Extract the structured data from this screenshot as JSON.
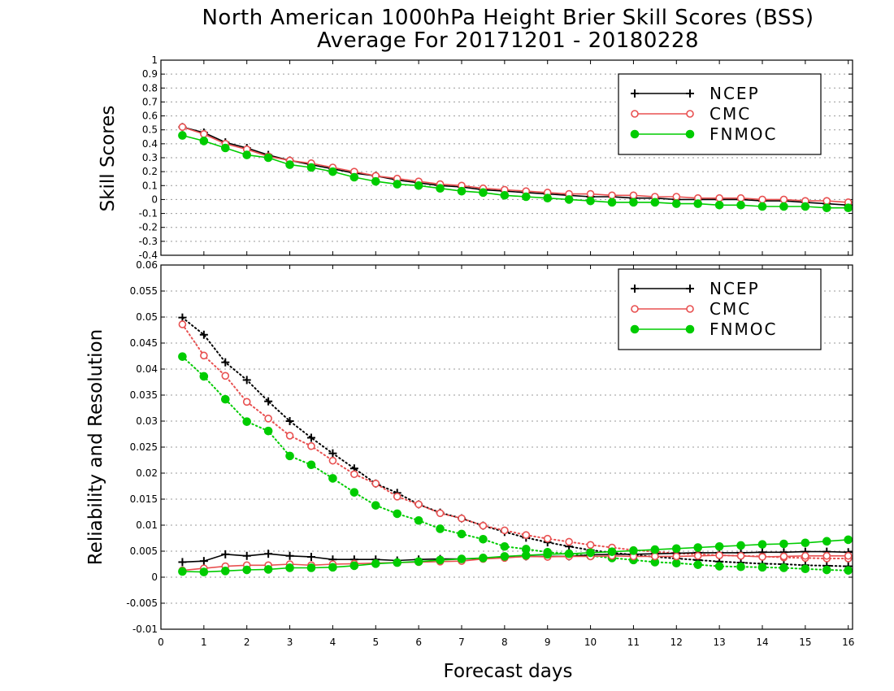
{
  "title_line1": "North American 1000hPa Height Brier Skill Scores (BSS)",
  "title_line2": "Average For 20171201 - 20180228",
  "xlabel": "Forecast days",
  "chart_data": [
    {
      "type": "line",
      "ylabel": "Skill Scores",
      "xlim": [
        0,
        16.1
      ],
      "ylim": [
        -0.4,
        1
      ],
      "yticks": [
        -0.4,
        -0.3,
        -0.2,
        -0.1,
        0,
        0.1,
        0.2,
        0.3,
        0.4,
        0.5,
        0.6,
        0.7,
        0.8,
        0.9,
        1
      ],
      "ytick_labels": [
        "-0.4",
        "-0.3",
        "-0.2",
        "-0.1",
        "0",
        "0.1",
        "0.2",
        "0.3",
        "0.4",
        "0.5",
        "0.6",
        "0.7",
        "0.8",
        "0.9",
        "1"
      ],
      "grid": true,
      "legend": "top-right",
      "x": [
        0.5,
        1,
        1.5,
        2,
        2.5,
        3,
        3.5,
        4,
        4.5,
        5,
        5.5,
        6,
        6.5,
        7,
        7.5,
        8,
        8.5,
        9,
        9.5,
        10,
        10.5,
        11,
        11.5,
        12,
        12.5,
        13,
        13.5,
        14,
        14.5,
        15,
        15.5,
        16
      ],
      "series": [
        {
          "name": "NCEP",
          "color": "#000000",
          "marker": "plus",
          "linestyle": "solid",
          "values": [
            0.52,
            0.48,
            0.41,
            0.37,
            0.32,
            0.28,
            0.25,
            0.22,
            0.19,
            0.17,
            0.14,
            0.12,
            0.1,
            0.09,
            0.07,
            0.06,
            0.05,
            0.04,
            0.03,
            0.02,
            0.02,
            0.01,
            0.01,
            0.0,
            0.0,
            0.0,
            0.0,
            -0.01,
            -0.01,
            -0.02,
            -0.03,
            -0.04
          ]
        },
        {
          "name": "CMC",
          "color": "#e85050",
          "marker": "open-circle",
          "linestyle": "solid",
          "values": [
            0.52,
            0.47,
            0.4,
            0.36,
            0.31,
            0.28,
            0.26,
            0.23,
            0.2,
            0.17,
            0.15,
            0.13,
            0.11,
            0.1,
            0.08,
            0.07,
            0.06,
            0.05,
            0.04,
            0.04,
            0.03,
            0.03,
            0.02,
            0.02,
            0.01,
            0.01,
            0.01,
            0.0,
            0.0,
            -0.01,
            -0.01,
            -0.02
          ]
        },
        {
          "name": "FNMOC",
          "color": "#00cc00",
          "marker": "filled-circle",
          "linestyle": "solid",
          "values": [
            0.46,
            0.42,
            0.37,
            0.32,
            0.3,
            0.25,
            0.23,
            0.2,
            0.16,
            0.13,
            0.11,
            0.1,
            0.08,
            0.06,
            0.05,
            0.03,
            0.02,
            0.01,
            0.0,
            -0.01,
            -0.02,
            -0.02,
            -0.02,
            -0.03,
            -0.03,
            -0.04,
            -0.04,
            -0.05,
            -0.05,
            -0.05,
            -0.06,
            -0.06
          ]
        }
      ]
    },
    {
      "type": "line",
      "ylabel": "Reliability and Resolution",
      "xlim": [
        0,
        16.1
      ],
      "ylim": [
        -0.01,
        0.06
      ],
      "yticks": [
        -0.01,
        -0.005,
        0,
        0.005,
        0.01,
        0.015,
        0.02,
        0.025,
        0.03,
        0.035,
        0.04,
        0.045,
        0.05,
        0.055,
        0.06
      ],
      "ytick_labels": [
        "-0.01",
        "-0.005",
        "0",
        "0.005",
        "0.01",
        "0.015",
        "0.02",
        "0.025",
        "0.03",
        "0.035",
        "0.04",
        "0.045",
        "0.05",
        "0.055",
        "0.06"
      ],
      "grid": true,
      "legend": "top-right",
      "x": [
        0.5,
        1,
        1.5,
        2,
        2.5,
        3,
        3.5,
        4,
        4.5,
        5,
        5.5,
        6,
        6.5,
        7,
        7.5,
        8,
        8.5,
        9,
        9.5,
        10,
        10.5,
        11,
        11.5,
        12,
        12.5,
        13,
        13.5,
        14,
        14.5,
        15,
        15.5,
        16
      ],
      "series": [
        {
          "name": "NCEP",
          "color": "#000000",
          "marker": "plus",
          "linestyle": "dotted",
          "metric": "resolution",
          "values": [
            0.0499,
            0.0466,
            0.0413,
            0.0379,
            0.0338,
            0.03,
            0.0268,
            0.0238,
            0.0209,
            0.018,
            0.0162,
            0.014,
            0.0124,
            0.0113,
            0.0099,
            0.0087,
            0.0076,
            0.0067,
            0.0059,
            0.0052,
            0.0047,
            0.0043,
            0.0039,
            0.0036,
            0.0033,
            0.003,
            0.0028,
            0.0026,
            0.0025,
            0.0023,
            0.0022,
            0.0021
          ]
        },
        {
          "name": "CMC",
          "color": "#e85050",
          "marker": "open-circle",
          "linestyle": "dotted",
          "metric": "resolution",
          "values": [
            0.0486,
            0.0426,
            0.0387,
            0.0337,
            0.0305,
            0.0272,
            0.0252,
            0.0224,
            0.0198,
            0.018,
            0.0155,
            0.014,
            0.0123,
            0.0113,
            0.0099,
            0.009,
            0.0081,
            0.0074,
            0.0068,
            0.0062,
            0.0057,
            0.0052,
            0.0049,
            0.0046,
            0.0044,
            0.0042,
            0.0041,
            0.004,
            0.0038,
            0.0037,
            0.0036,
            0.0036
          ]
        },
        {
          "name": "FNMOC",
          "color": "#00cc00",
          "marker": "filled-circle",
          "linestyle": "dotted",
          "metric": "resolution",
          "values": [
            0.0424,
            0.0386,
            0.0342,
            0.0299,
            0.0281,
            0.0233,
            0.0216,
            0.019,
            0.0163,
            0.0138,
            0.0122,
            0.0109,
            0.0093,
            0.0083,
            0.0073,
            0.0059,
            0.0054,
            0.0048,
            0.0045,
            0.0041,
            0.0037,
            0.0033,
            0.0029,
            0.0027,
            0.0024,
            0.0021,
            0.002,
            0.0019,
            0.0018,
            0.0016,
            0.0014,
            0.0013
          ]
        },
        {
          "name": "NCEP",
          "color": "#000000",
          "marker": "plus",
          "linestyle": "solid",
          "metric": "reliability",
          "values": [
            0.0029,
            0.0031,
            0.0044,
            0.0041,
            0.0045,
            0.0041,
            0.0039,
            0.0034,
            0.0034,
            0.0034,
            0.0032,
            0.0034,
            0.0035,
            0.0035,
            0.0036,
            0.0038,
            0.004,
            0.004,
            0.004,
            0.0043,
            0.0044,
            0.0044,
            0.0045,
            0.0046,
            0.0047,
            0.0047,
            0.0047,
            0.0048,
            0.0048,
            0.0049,
            0.0049,
            0.0048
          ]
        },
        {
          "name": "CMC",
          "color": "#e85050",
          "marker": "open-circle",
          "linestyle": "solid",
          "metric": "reliability",
          "values": [
            0.0013,
            0.0017,
            0.0021,
            0.0023,
            0.0023,
            0.0025,
            0.0023,
            0.0025,
            0.0026,
            0.0027,
            0.0028,
            0.0029,
            0.003,
            0.0031,
            0.0035,
            0.0037,
            0.004,
            0.0039,
            0.004,
            0.004,
            0.0041,
            0.004,
            0.004,
            0.004,
            0.0041,
            0.0042,
            0.0041,
            0.0039,
            0.004,
            0.0041,
            0.0041,
            0.0041
          ]
        },
        {
          "name": "FNMOC",
          "color": "#00cc00",
          "marker": "filled-circle",
          "linestyle": "solid",
          "metric": "reliability",
          "values": [
            0.0011,
            0.001,
            0.0012,
            0.0014,
            0.0015,
            0.0018,
            0.0018,
            0.0019,
            0.0022,
            0.0026,
            0.0028,
            0.003,
            0.0033,
            0.0035,
            0.0037,
            0.004,
            0.0042,
            0.0044,
            0.0045,
            0.0047,
            0.0049,
            0.0051,
            0.0053,
            0.0055,
            0.0057,
            0.0059,
            0.0061,
            0.0063,
            0.0064,
            0.0066,
            0.0069,
            0.0072
          ]
        }
      ]
    }
  ],
  "xtick_labels": [
    "0",
    "1",
    "2",
    "3",
    "4",
    "5",
    "6",
    "7",
    "8",
    "9",
    "10",
    "11",
    "12",
    "13",
    "14",
    "15",
    "16"
  ],
  "legend_entries": [
    "NCEP",
    "CMC",
    "FNMOC"
  ]
}
